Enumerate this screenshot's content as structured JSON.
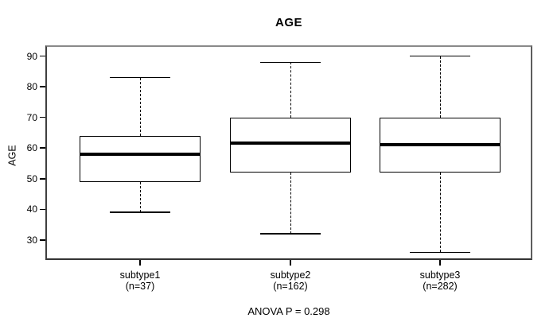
{
  "title": "AGE",
  "y_axis": {
    "label": "AGE",
    "ticks": [
      90,
      80,
      70,
      60,
      50,
      40,
      30
    ]
  },
  "x_axis": {
    "categories": [
      {
        "label": "subtype1",
        "sublabel": "(n=37)"
      },
      {
        "label": "subtype2",
        "sublabel": "(n=162)"
      },
      {
        "label": "subtype3",
        "sublabel": "(n=282)"
      }
    ]
  },
  "annotation": {
    "text": "ANOVA P = 0.298"
  },
  "colors": {
    "foreground": "#000000",
    "background": "#ffffff",
    "frame_top": "#8a8a8a",
    "frame_dark": "#343434"
  },
  "chart_data": {
    "type": "boxplot",
    "title": "AGE",
    "ylabel": "AGE",
    "ylim": [
      24,
      93
    ],
    "yticks": [
      90,
      80,
      70,
      60,
      50,
      40,
      30
    ],
    "categories": [
      "subtype1",
      "subtype2",
      "subtype3"
    ],
    "series": [
      {
        "name": "subtype1",
        "n": 37,
        "whisker_low": 39,
        "q1": 49,
        "median": 58,
        "q3": 64,
        "whisker_high": 83
      },
      {
        "name": "subtype2",
        "n": 162,
        "whisker_low": 32,
        "q1": 52,
        "median": 61.5,
        "q3": 70,
        "whisker_high": 88
      },
      {
        "name": "subtype3",
        "n": 282,
        "whisker_low": 26,
        "q1": 52,
        "median": 61,
        "q3": 70,
        "whisker_high": 90
      }
    ],
    "annotation": "ANOVA P = 0.298",
    "legend": "none",
    "grid": false
  }
}
